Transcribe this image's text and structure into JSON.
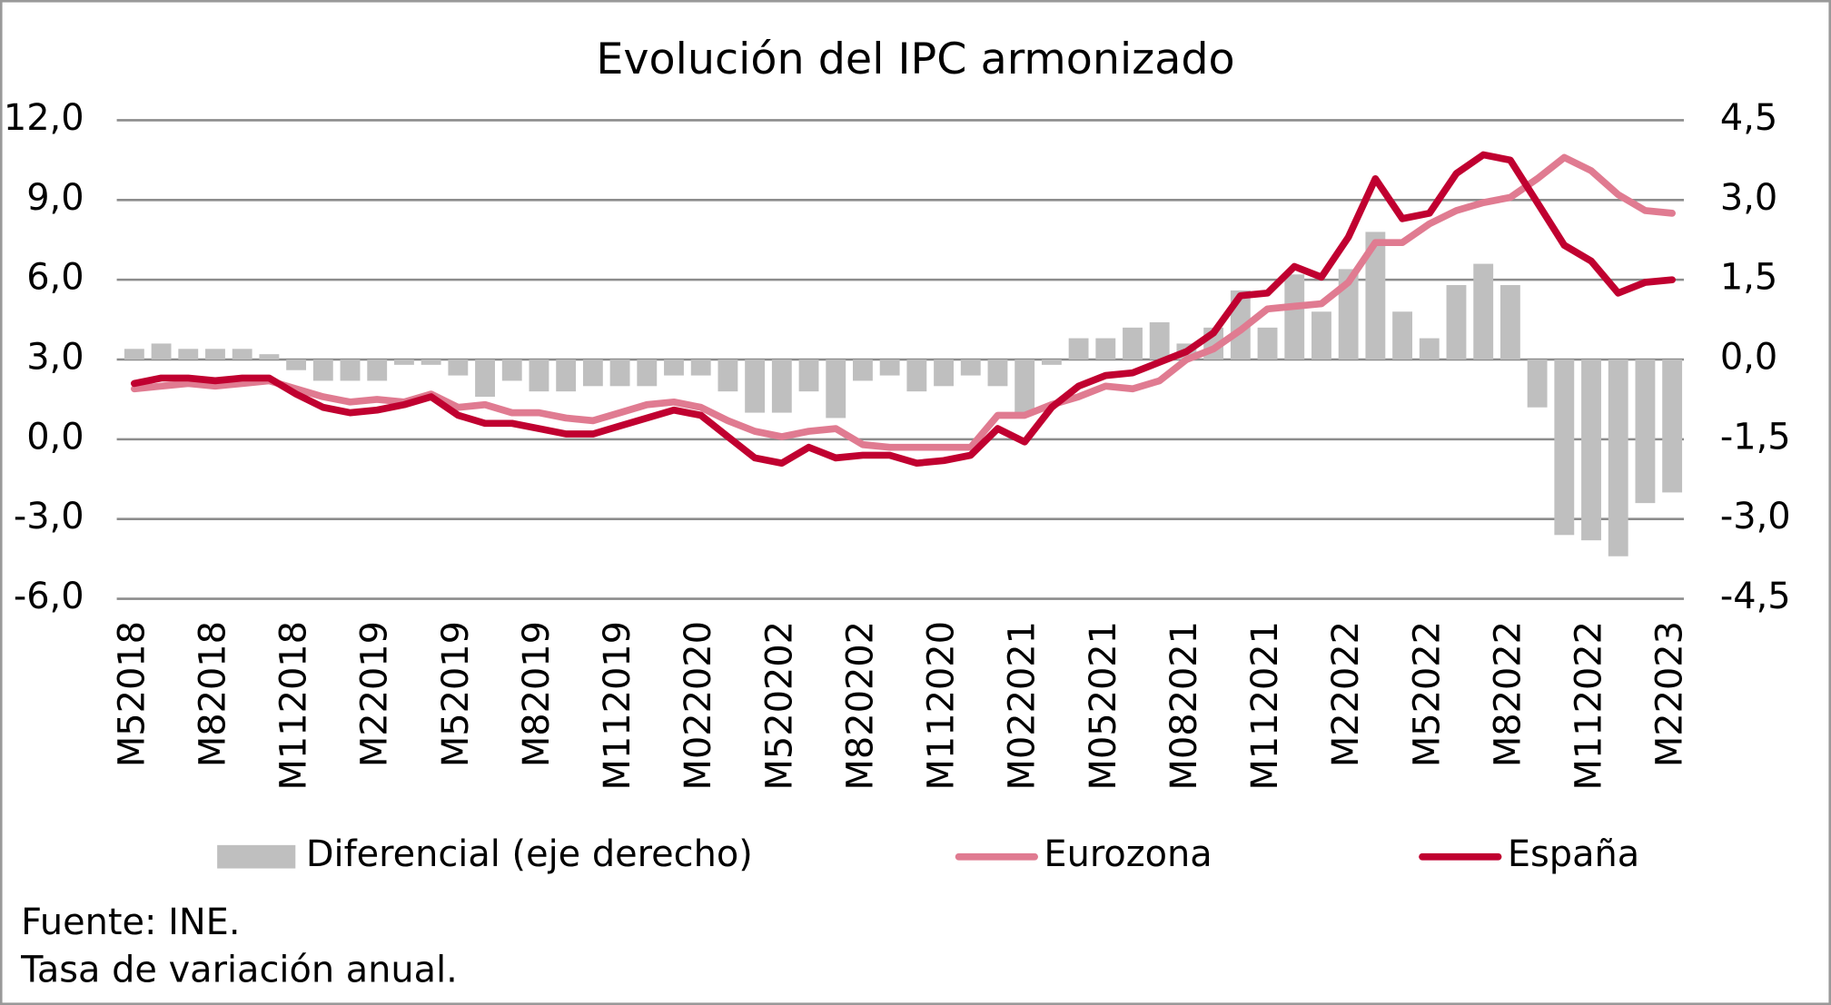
{
  "chart_data": {
    "type": "combo",
    "title": "Evolución del IPC armonizado",
    "categories": [
      "M52018",
      null,
      null,
      "M82018",
      null,
      null,
      "M112018",
      null,
      null,
      "M22019",
      null,
      null,
      "M52019",
      null,
      null,
      "M82019",
      null,
      null,
      "M112019",
      null,
      null,
      "M022020",
      null,
      null,
      "M520202",
      null,
      null,
      "M820202",
      null,
      null,
      "M112020",
      null,
      null,
      "M022021",
      null,
      null,
      "M052021",
      null,
      null,
      "M082021",
      null,
      null,
      "M112021",
      null,
      null,
      "M22022",
      null,
      null,
      "M52022",
      null,
      null,
      "M82022",
      null,
      null,
      "M112022",
      null,
      null,
      "M22023"
    ],
    "series": [
      {
        "name": "Diferencial (eje derecho)",
        "type": "bar",
        "axis": "y2",
        "color": "#bfbfbf",
        "values": [
          0.2,
          0.3,
          0.2,
          0.2,
          0.2,
          0.1,
          -0.2,
          -0.4,
          -0.4,
          -0.4,
          -0.1,
          -0.1,
          -0.3,
          -0.7,
          -0.4,
          -0.6,
          -0.6,
          -0.5,
          -0.5,
          -0.5,
          -0.3,
          -0.3,
          -0.6,
          -1.0,
          -1.0,
          -0.6,
          -1.1,
          -0.4,
          -0.3,
          -0.6,
          -0.5,
          -0.3,
          -0.5,
          -1.0,
          -0.1,
          0.4,
          0.4,
          0.6,
          0.7,
          0.3,
          0.6,
          1.3,
          0.6,
          1.6,
          0.9,
          1.7,
          2.4,
          0.9,
          0.4,
          1.4,
          1.8,
          1.4,
          -0.9,
          -3.3,
          -3.4,
          -3.7,
          -2.7,
          -2.5
        ]
      },
      {
        "name": "Eurozona",
        "type": "line",
        "color": "#e07b91",
        "values": [
          1.9,
          2.0,
          2.1,
          2.0,
          2.1,
          2.2,
          1.9,
          1.6,
          1.4,
          1.5,
          1.4,
          1.7,
          1.2,
          1.3,
          1.0,
          1.0,
          0.8,
          0.7,
          1.0,
          1.3,
          1.4,
          1.2,
          0.7,
          0.3,
          0.1,
          0.3,
          0.4,
          -0.2,
          -0.3,
          -0.3,
          -0.3,
          -0.3,
          0.9,
          0.9,
          1.3,
          1.6,
          2.0,
          1.9,
          2.2,
          3.0,
          3.4,
          4.1,
          4.9,
          5.0,
          5.1,
          5.9,
          7.4,
          7.4,
          8.1,
          8.6,
          8.9,
          9.1,
          9.8,
          10.6,
          10.1,
          9.2,
          8.6,
          8.5
        ]
      },
      {
        "name": "España",
        "type": "line",
        "color": "#c00030",
        "values": [
          2.1,
          2.3,
          2.3,
          2.2,
          2.3,
          2.3,
          1.7,
          1.2,
          1.0,
          1.1,
          1.3,
          1.6,
          0.9,
          0.6,
          0.6,
          0.4,
          0.2,
          0.2,
          0.5,
          0.8,
          1.1,
          0.9,
          0.1,
          -0.7,
          -0.9,
          -0.3,
          -0.7,
          -0.6,
          -0.6,
          -0.9,
          -0.8,
          -0.6,
          0.4,
          -0.1,
          1.2,
          2.0,
          2.4,
          2.5,
          2.9,
          3.3,
          4.0,
          5.4,
          5.5,
          6.5,
          6.1,
          7.6,
          9.8,
          8.3,
          8.5,
          10.0,
          10.7,
          10.5,
          8.9,
          7.3,
          6.7,
          5.5,
          5.9,
          6.0
        ]
      }
    ],
    "ylim": [
      -6,
      12
    ],
    "yticks": [
      {
        "value": -6,
        "label": "-6,0"
      },
      {
        "value": -3,
        "label": "-3,0"
      },
      {
        "value": 0,
        "label": "0,0"
      },
      {
        "value": 3,
        "label": "3,0"
      },
      {
        "value": 6,
        "label": "6,0"
      },
      {
        "value": 9,
        "label": "9,0"
      },
      {
        "value": 12,
        "label": "12,0"
      }
    ],
    "y2lim": [
      -4.5,
      4.5
    ],
    "y2ticks": [
      {
        "value": -4.5,
        "label": "-4,5"
      },
      {
        "value": -3,
        "label": "-3,0"
      },
      {
        "value": -1.5,
        "label": "-1,5"
      },
      {
        "value": 0,
        "label": "0,0"
      },
      {
        "value": 1.5,
        "label": "1,5"
      },
      {
        "value": 3,
        "label": "3,0"
      },
      {
        "value": 4.5,
        "label": "4,5"
      }
    ],
    "grid": true,
    "legend": "bottom",
    "notes": [
      "Fuente: INE.",
      "Tasa de variación anual."
    ]
  }
}
